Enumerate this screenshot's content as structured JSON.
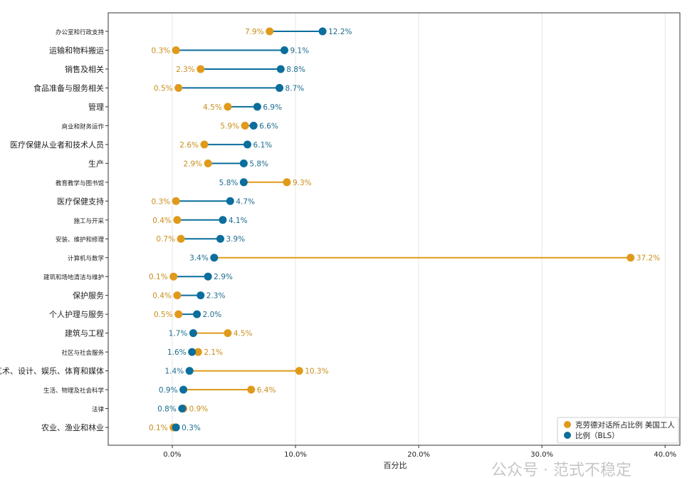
{
  "chart_data": {
    "type": "dumbbell",
    "title": "",
    "xlabel": "百分比",
    "ylabel": "",
    "xlim": [
      -5.2,
      41.2
    ],
    "xticks": [
      0,
      10,
      20,
      30,
      40
    ],
    "xtick_labels": [
      "0.0%",
      "10.0%",
      "20.0%",
      "30.0%",
      "40.0%"
    ],
    "grid": "vertical",
    "legend_position": "bottom-right",
    "categories": [
      "办公室和行政支持",
      "运输和物料搬运",
      "销售及相关",
      "食品准备与服务相关",
      "管理",
      "商业和财务运作",
      "医疗保健从业者和技术人员",
      "生产",
      "教育教学与图书馆",
      "医疗保健支持",
      "施工与开采",
      "安装、维护和修理",
      "计算机与数学",
      "建筑和场地清洁与维护",
      "保护服务",
      "个人护理与服务",
      "建筑与工程",
      "社区与社会服务",
      "艺术、设计、娱乐、体育和媒体",
      "生活、物理及社会科学",
      "法律",
      "农业、渔业和林业"
    ],
    "series": [
      {
        "name": "克劳德对话所占比例 美国工人",
        "color": "#E09A1B",
        "values": [
          7.9,
          0.3,
          2.3,
          0.5,
          4.5,
          5.9,
          2.6,
          2.9,
          9.3,
          0.3,
          0.4,
          0.7,
          37.2,
          0.1,
          0.4,
          0.5,
          4.5,
          2.1,
          10.3,
          6.4,
          0.9,
          0.1
        ]
      },
      {
        "name": "比例（BLS）",
        "color": "#0B6E9C",
        "values": [
          12.2,
          9.1,
          8.8,
          8.7,
          6.9,
          6.6,
          6.1,
          5.8,
          5.8,
          4.7,
          4.1,
          3.9,
          3.4,
          2.9,
          2.3,
          2.0,
          1.7,
          1.6,
          1.4,
          0.9,
          0.8,
          0.3
        ]
      }
    ]
  },
  "watermark": "公众号 · 范式不稳定"
}
